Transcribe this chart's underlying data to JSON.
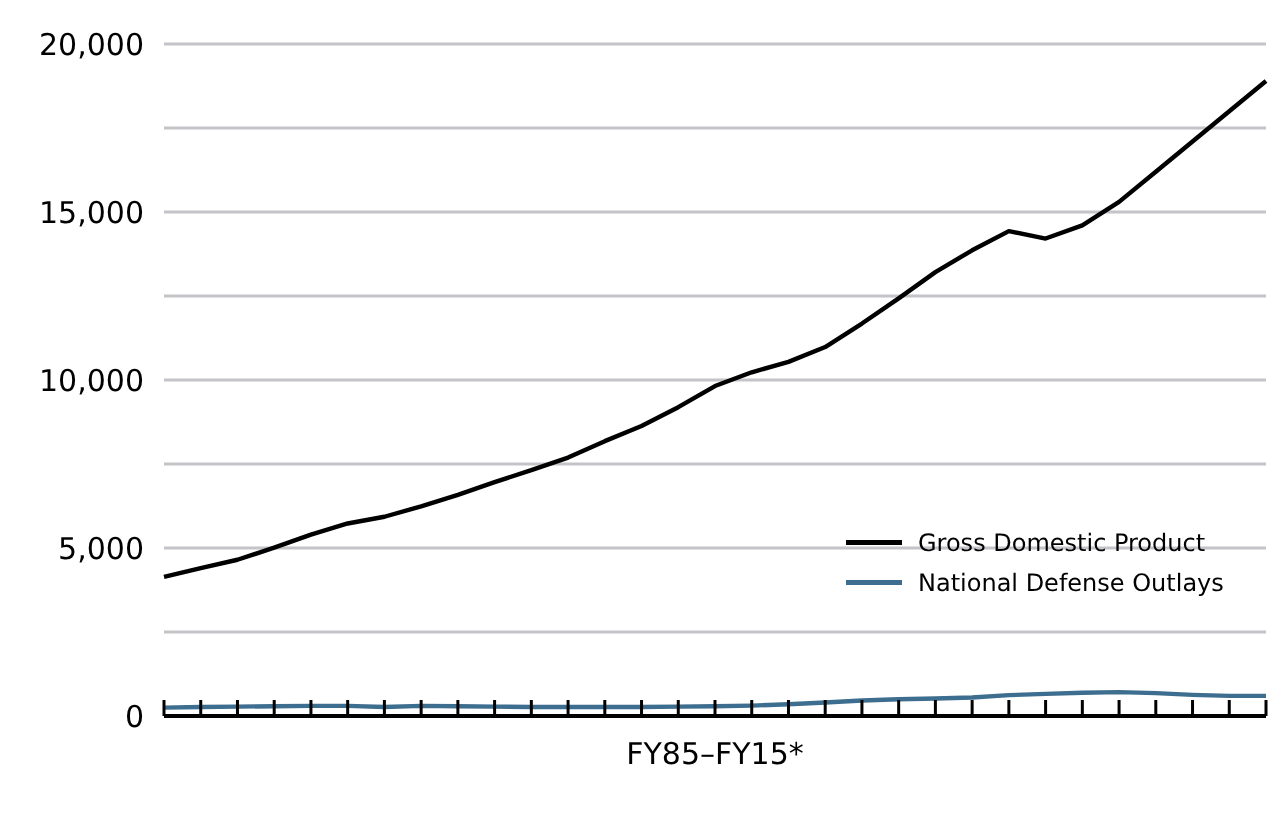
{
  "chart_data": {
    "type": "line",
    "xlabel": "FY85–FY15*",
    "categories": [
      null,
      null,
      null,
      null,
      null,
      null,
      null,
      null,
      null,
      null,
      null,
      null,
      null,
      null,
      null,
      null,
      null,
      null,
      null,
      null,
      null,
      null,
      null,
      null,
      null,
      null,
      null,
      null,
      null,
      null,
      null
    ],
    "series": [
      {
        "name": "Gross Domestic Product",
        "color": "#000000",
        "values": [
          4140,
          4400,
          4650,
          5010,
          5400,
          5730,
          5930,
          6240,
          6580,
          6960,
          7320,
          7690,
          8180,
          8630,
          9190,
          9820,
          10230,
          10540,
          10980,
          11680,
          12430,
          13210,
          13860,
          14430,
          14210,
          14600,
          15300,
          16200,
          17100,
          18000,
          18900
        ]
      },
      {
        "name": "National Defense Outlays",
        "color": "#3d6e8f",
        "values": [
          250,
          270,
          280,
          290,
          300,
          300,
          270,
          300,
          290,
          280,
          270,
          270,
          270,
          270,
          280,
          290,
          310,
          350,
          400,
          460,
          500,
          520,
          550,
          620,
          660,
          690,
          710,
          680,
          630,
          600,
          600
        ]
      }
    ],
    "ylim": [
      0,
      20000
    ],
    "yticks": [
      0,
      {
        "value": 2500,
        "label": null
      },
      {
        "value": 5000,
        "label": "5,000"
      },
      {
        "value": 7500,
        "label": null
      },
      {
        "value": 10000,
        "label": "10,000"
      },
      {
        "value": 12500,
        "label": null
      },
      {
        "value": 15000,
        "label": "15,000"
      },
      {
        "value": 17500,
        "label": null
      },
      {
        "value": 20000,
        "label": "20,000"
      }
    ],
    "grid": "y",
    "legend": "bottom right",
    "marker": "none",
    "line_style": "solid"
  }
}
